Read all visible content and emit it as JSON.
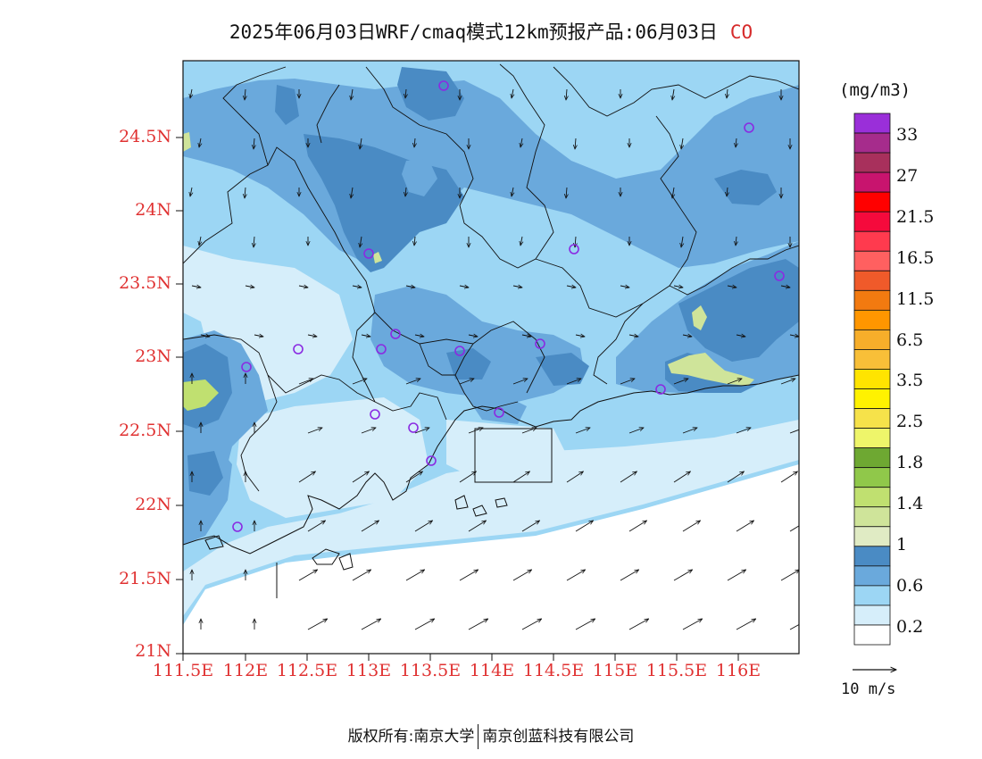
{
  "header": {
    "title": "2025年06月03日WRF/cmaq模式12km预报产品:06月03日",
    "variable": "CO"
  },
  "axes": {
    "lat_labels": [
      "24.5N",
      "24N",
      "23.5N",
      "23N",
      "22.5N",
      "22N",
      "21.5N",
      "21N"
    ],
    "lon_labels": [
      "111.5E",
      "112E",
      "112.5E",
      "113E",
      "113.5E",
      "114E",
      "114.5E",
      "115E",
      "115.5E",
      "116E"
    ]
  },
  "colorbar": {
    "unit": "(mg/m3)",
    "labels": [
      "33",
      "27",
      "21.5",
      "16.5",
      "11.5",
      "6.5",
      "3.5",
      "2.5",
      "1.8",
      "1.4",
      "1",
      "0.6",
      "0.2"
    ],
    "colors": [
      "#9a2fd9",
      "#a62c8c",
      "#a8305c",
      "#c8146e",
      "#ff0000",
      "#f50a3c",
      "#ff3a4e",
      "#ff6060",
      "#f05a2a",
      "#f27a10",
      "#ff9600",
      "#f7ae2a",
      "#f8bf38",
      "#ffe400",
      "#fff200",
      "#f6e24a",
      "#eef56a",
      "#6ea832",
      "#90c84a",
      "#c0e070",
      "#cfe49a",
      "#e0ebc4",
      "#4a8bc4",
      "#6aa9dc",
      "#9cd6f4",
      "#d6eefa",
      "#ffffff"
    ]
  },
  "wind_reference": {
    "label": "10 m/s"
  },
  "footer": {
    "left": "版权所有:南京大学",
    "right": "南京创蓝科技有限公司"
  }
}
